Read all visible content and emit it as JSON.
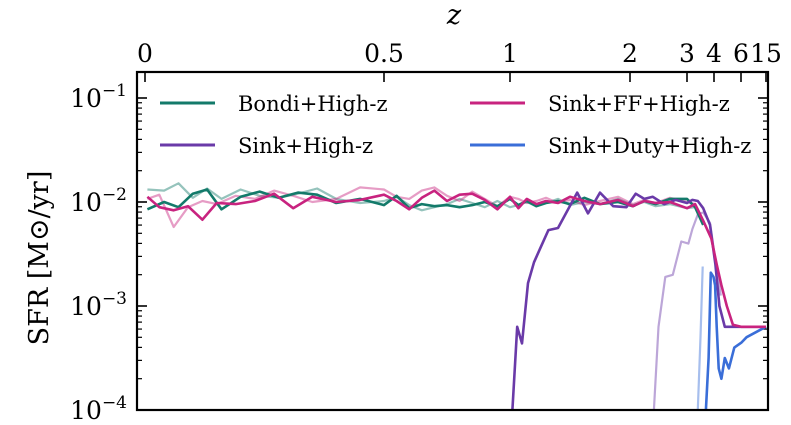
{
  "chart_data": {
    "type": "line",
    "xlabel": "z",
    "ylabel": "SFR [M⊙/yr]",
    "ylim_log10": [
      -4,
      -0.75
    ],
    "scale": "log",
    "top_axis_ticks": [
      "0",
      "0.5",
      "1",
      "2",
      "3",
      "4",
      "6",
      "15"
    ],
    "top_axis_tick_z": [
      0,
      0.5,
      1,
      2,
      3,
      4,
      6,
      15
    ],
    "y_ticks": [
      {
        "base": "10",
        "exp": "−1",
        "log10": -1
      },
      {
        "base": "10",
        "exp": "−2",
        "log10": -2
      },
      {
        "base": "10",
        "exp": "−3",
        "log10": -3
      },
      {
        "base": "10",
        "exp": "−4",
        "log10": -4
      }
    ],
    "legend": [
      {
        "label": "Bondi+High-z",
        "color": "#137a6a"
      },
      {
        "label": "Sink+FF+High-z",
        "color": "#c8237f"
      },
      {
        "label": "Sink+High-z",
        "color": "#6a3aa8"
      },
      {
        "label": "Sink+Duty+High-z",
        "color": "#3a6ed8"
      }
    ],
    "series": [
      {
        "name": "Bondi+High-z",
        "color": "#137a6a",
        "opacity": 0.45,
        "width": 2.2,
        "x": [
          0.005,
          0.04,
          0.07,
          0.1,
          0.13,
          0.16,
          0.2,
          0.24,
          0.28,
          0.32,
          0.36,
          0.4,
          0.45,
          0.5,
          0.55,
          0.6,
          0.65,
          0.7,
          0.75,
          0.8,
          0.85,
          0.9,
          0.95,
          1.0,
          1.07,
          1.14,
          1.22,
          1.3,
          1.4,
          1.5,
          1.62,
          1.75,
          1.9,
          2.05,
          2.25,
          2.45,
          2.7,
          3.0,
          3.3
        ],
        "y": [
          -1.88,
          -1.89,
          -1.82,
          -1.96,
          -1.87,
          -1.97,
          -1.88,
          -1.94,
          -1.96,
          -1.92,
          -1.87,
          -1.97,
          -2.01,
          -1.99,
          -1.95,
          -2.03,
          -2.08,
          -2.05,
          -2.02,
          -1.97,
          -2.01,
          -2.05,
          -1.99,
          -2.05,
          -2.03,
          -2.0,
          -2.04,
          -2.01,
          -1.97,
          -2.03,
          -2.0,
          -2.02,
          -1.97,
          -2.03,
          -2.0,
          -2.04,
          -2.02,
          -2.06,
          -2.05
        ]
      },
      {
        "name": "Sink+FF+High-z",
        "color": "#c8237f",
        "opacity": 0.45,
        "width": 2.2,
        "x": [
          0.005,
          0.03,
          0.06,
          0.09,
          0.12,
          0.15,
          0.19,
          0.23,
          0.27,
          0.31,
          0.35,
          0.4,
          0.45,
          0.5,
          0.55,
          0.6,
          0.65,
          0.7,
          0.75,
          0.8,
          0.85,
          0.9,
          0.95,
          1.0,
          1.07,
          1.14,
          1.22,
          1.3,
          1.4,
          1.5,
          1.62,
          1.75,
          1.9,
          2.05,
          2.25,
          2.45,
          2.7,
          3.0,
          3.3
        ],
        "y": [
          -1.97,
          -1.93,
          -2.24,
          -2.05,
          -1.99,
          -2.02,
          -1.94,
          -1.97,
          -1.89,
          -1.94,
          -2.0,
          -1.97,
          -1.86,
          -1.88,
          -1.95,
          -1.97,
          -1.89,
          -1.86,
          -1.94,
          -1.99,
          -1.9,
          -1.97,
          -2.04,
          -1.95,
          -1.97,
          -2.01,
          -1.99,
          -1.96,
          -2.01,
          -1.98,
          -2.03,
          -1.99,
          -1.95,
          -2.02,
          -1.98,
          -2.01,
          -1.96,
          -2.0,
          -2.02
        ]
      },
      {
        "name": "Sink+High-z",
        "color": "#6a3aa8",
        "opacity": 0.45,
        "width": 2.2,
        "x": [
          2.42,
          2.5,
          2.62,
          2.75,
          2.9,
          3.05,
          3.2,
          3.4,
          3.6,
          3.85,
          4.15,
          4.5
        ],
        "y": [
          -4.0,
          -3.2,
          -2.72,
          -2.7,
          -2.38,
          -2.4,
          -2.26,
          -2.12,
          -2.1,
          -2.2,
          -2.6,
          -2.9
        ]
      },
      {
        "name": "Sink+Duty+High-z",
        "color": "#3a6ed8",
        "opacity": 0.45,
        "width": 2.2,
        "x": [
          3.4,
          3.5,
          3.58
        ],
        "y": [
          -4.0,
          -3.3,
          -2.62
        ]
      },
      {
        "name": "Bondi+High-z",
        "color": "#137a6a",
        "opacity": 1,
        "width": 2.6,
        "x": [
          0.005,
          0.04,
          0.07,
          0.1,
          0.13,
          0.16,
          0.2,
          0.24,
          0.28,
          0.32,
          0.36,
          0.4,
          0.45,
          0.5,
          0.55,
          0.6,
          0.65,
          0.7,
          0.75,
          0.8,
          0.85,
          0.9,
          0.95,
          1.0,
          1.07,
          1.14,
          1.22,
          1.3,
          1.4,
          1.5,
          1.62,
          1.75,
          1.9,
          2.05,
          2.25,
          2.45,
          2.7,
          3.0,
          3.3,
          3.6
        ],
        "y": [
          -2.07,
          -2.0,
          -2.05,
          -1.92,
          -1.88,
          -2.07,
          -1.95,
          -1.9,
          -1.96,
          -1.91,
          -1.93,
          -2.01,
          -1.97,
          -2.03,
          -1.94,
          -2.06,
          -2.02,
          -2.04,
          -2.03,
          -2.05,
          -2.03,
          -2.0,
          -2.04,
          -1.97,
          -2.03,
          -1.99,
          -2.04,
          -2.01,
          -1.99,
          -2.02,
          -1.96,
          -2.02,
          -2.0,
          -2.04,
          -1.99,
          -2.02,
          -1.97,
          -1.97,
          -2.05,
          -2.22
        ]
      },
      {
        "name": "Sink+High-z",
        "color": "#6a3aa8",
        "opacity": 1,
        "width": 2.6,
        "x": [
          1.02,
          1.06,
          1.1,
          1.15,
          1.2,
          1.25,
          1.32,
          1.4,
          1.48,
          1.56,
          1.65,
          1.75,
          1.86,
          1.97,
          2.1,
          2.25,
          2.4,
          2.6,
          2.8,
          3.0,
          3.2,
          3.4,
          3.6,
          3.85,
          4.1,
          4.4,
          4.8,
          5.2,
          6.0,
          7.5,
          10.0,
          15.0
        ],
        "y": [
          -4.0,
          -3.2,
          -3.36,
          -2.78,
          -2.58,
          -2.45,
          -2.27,
          -2.25,
          -2.08,
          -1.91,
          -2.11,
          -1.91,
          -2.04,
          -2.05,
          -1.92,
          -1.97,
          -1.95,
          -2.02,
          -1.98,
          -2.01,
          -1.98,
          -1.99,
          -2.06,
          -2.22,
          -2.6,
          -3.0,
          -3.2,
          -3.2,
          -3.2,
          -3.2,
          -3.2,
          -3.2
        ]
      },
      {
        "name": "Sink+Duty+High-z",
        "color": "#3a6ed8",
        "opacity": 1,
        "width": 2.6,
        "x": [
          3.7,
          3.8,
          3.88,
          3.98,
          4.08,
          4.2,
          4.35,
          4.55,
          4.8,
          5.1,
          5.5,
          6.2,
          8.0,
          15.0
        ],
        "y": [
          -4.0,
          -3.5,
          -2.68,
          -2.72,
          -2.8,
          -3.2,
          -3.6,
          -3.7,
          -3.5,
          -3.6,
          -3.4,
          -3.35,
          -3.3,
          -3.2
        ]
      },
      {
        "name": "Sink+FF+High-z",
        "color": "#c8237f",
        "opacity": 1,
        "width": 2.6,
        "x": [
          0.005,
          0.03,
          0.06,
          0.09,
          0.12,
          0.15,
          0.19,
          0.23,
          0.27,
          0.31,
          0.35,
          0.4,
          0.45,
          0.5,
          0.55,
          0.6,
          0.65,
          0.7,
          0.75,
          0.8,
          0.85,
          0.9,
          0.95,
          1.0,
          1.07,
          1.14,
          1.22,
          1.3,
          1.4,
          1.5,
          1.62,
          1.75,
          1.9,
          2.05,
          2.25,
          2.45,
          2.7,
          3.0,
          3.3,
          3.6,
          3.9,
          4.2,
          4.55,
          4.95,
          5.4,
          6.0,
          7.5,
          10.0,
          15.0
        ],
        "y": [
          -1.95,
          -2.05,
          -2.08,
          -2.04,
          -2.17,
          -2.01,
          -2.02,
          -1.99,
          -1.92,
          -2.06,
          -1.95,
          -2.0,
          -1.98,
          -1.93,
          -1.99,
          -2.07,
          -1.96,
          -1.89,
          -1.99,
          -1.93,
          -1.92,
          -1.98,
          -2.07,
          -1.95,
          -2.06,
          -1.97,
          -2.02,
          -1.99,
          -2.01,
          -1.95,
          -1.99,
          -2.02,
          -1.98,
          -2.04,
          -1.99,
          -2.01,
          -2.0,
          -2.06,
          -2.02,
          -2.18,
          -2.35,
          -2.6,
          -2.8,
          -3.0,
          -3.18,
          -3.2,
          -3.2,
          -3.2,
          -3.2
        ]
      }
    ]
  }
}
